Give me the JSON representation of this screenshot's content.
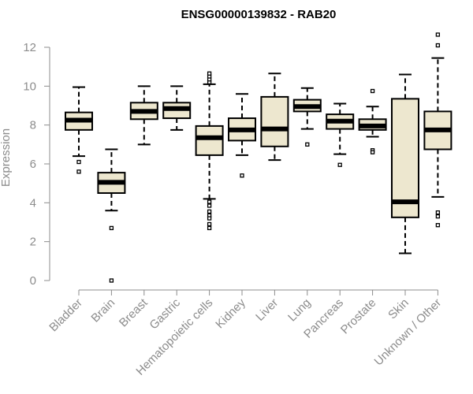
{
  "chart_data": {
    "type": "boxplot",
    "title": "ENSG00000139832 - RAB20",
    "ylabel": "Expression",
    "xlabel": "",
    "ylim": [
      0,
      12
    ],
    "yticks": [
      0,
      2,
      4,
      6,
      8,
      10,
      12
    ],
    "grid": false,
    "legend": "none",
    "colors": {
      "box_fill": "#ede7cf",
      "box_stroke": "#000000",
      "axis": "#8c8c8c",
      "title": "#000000"
    },
    "categories": [
      "Bladder",
      "Brain",
      "Breast",
      "Gastric",
      "Hematopoietic cells",
      "Kidney",
      "Liver",
      "Lung",
      "Pancreas",
      "Prostate",
      "Skin",
      "Unknown / Other"
    ],
    "boxes": [
      {
        "category": "Bladder",
        "whisker_low": 6.4,
        "q1": 7.75,
        "median": 8.25,
        "q3": 8.65,
        "whisker_high": 9.95,
        "outliers": [
          6.1,
          5.6
        ]
      },
      {
        "category": "Brain",
        "whisker_low": 3.6,
        "q1": 4.5,
        "median": 5.05,
        "q3": 5.55,
        "whisker_high": 6.75,
        "outliers": [
          2.7,
          0.0
        ]
      },
      {
        "category": "Breast",
        "whisker_low": 7.0,
        "q1": 8.3,
        "median": 8.7,
        "q3": 9.15,
        "whisker_high": 10.0,
        "outliers": []
      },
      {
        "category": "Gastric",
        "whisker_low": 7.75,
        "q1": 8.35,
        "median": 8.85,
        "q3": 9.15,
        "whisker_high": 10.0,
        "outliers": []
      },
      {
        "category": "Hematopoietic cells",
        "whisker_low": 4.2,
        "q1": 6.45,
        "median": 7.35,
        "q3": 7.95,
        "whisker_high": 10.1,
        "outliers": [
          10.2,
          10.35,
          10.5,
          10.65,
          4.05,
          3.85,
          3.55,
          3.35,
          3.2,
          2.9,
          2.7
        ]
      },
      {
        "category": "Kidney",
        "whisker_low": 6.45,
        "q1": 7.2,
        "median": 7.75,
        "q3": 8.35,
        "whisker_high": 9.6,
        "outliers": [
          5.4
        ]
      },
      {
        "category": "Liver",
        "whisker_low": 6.2,
        "q1": 6.9,
        "median": 7.8,
        "q3": 9.45,
        "whisker_high": 10.65,
        "outliers": []
      },
      {
        "category": "Lung",
        "whisker_low": 7.8,
        "q1": 8.7,
        "median": 8.95,
        "q3": 9.3,
        "whisker_high": 9.9,
        "outliers": [
          7.0
        ]
      },
      {
        "category": "Pancreas",
        "whisker_low": 6.5,
        "q1": 7.8,
        "median": 8.2,
        "q3": 8.55,
        "whisker_high": 9.1,
        "outliers": [
          5.95
        ]
      },
      {
        "category": "Prostate",
        "whisker_low": 7.4,
        "q1": 7.75,
        "median": 7.95,
        "q3": 8.3,
        "whisker_high": 8.95,
        "outliers": [
          9.75,
          6.7,
          6.6
        ]
      },
      {
        "category": "Skin",
        "whisker_low": 1.4,
        "q1": 3.25,
        "median": 4.05,
        "q3": 9.35,
        "whisker_high": 10.6,
        "outliers": []
      },
      {
        "category": "Unknown / Other",
        "whisker_low": 4.3,
        "q1": 6.75,
        "median": 7.75,
        "q3": 8.7,
        "whisker_high": 11.45,
        "outliers": [
          12.65,
          12.1,
          3.5,
          3.3,
          2.85
        ]
      }
    ]
  }
}
